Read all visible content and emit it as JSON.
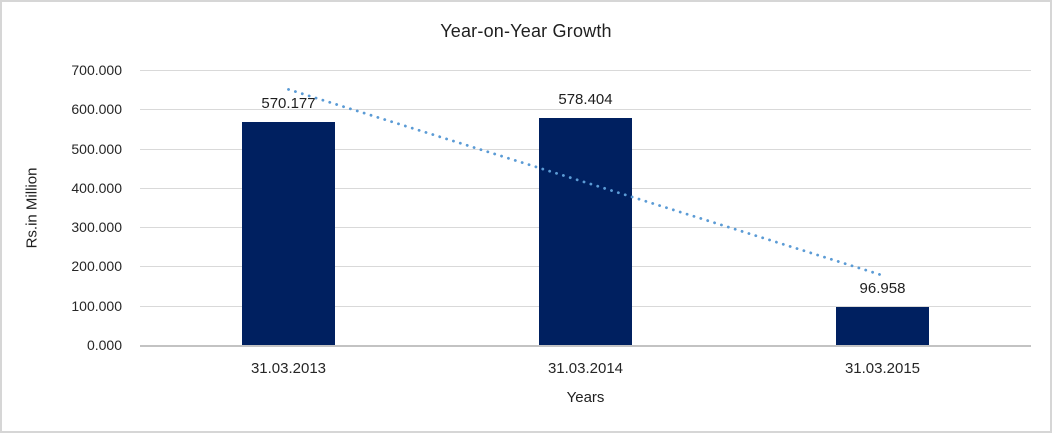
{
  "frame": {
    "background": "#ffffff",
    "border_color": "#d6d6d6"
  },
  "chart_data": {
    "type": "bar",
    "title": "Year-on-Year Growth",
    "xlabel": "Years",
    "ylabel": "Rs.in Million",
    "categories": [
      "31.03.2013",
      "31.03.2014",
      "31.03.2015"
    ],
    "values": [
      570.177,
      578.404,
      96.958
    ],
    "value_labels": [
      "570.177",
      "578.404",
      "96.958"
    ],
    "ylim": [
      0,
      700
    ],
    "yticks": [
      {
        "value": 700,
        "label": "700.000"
      },
      {
        "value": 600,
        "label": "600.000"
      },
      {
        "value": 500,
        "label": "500.000"
      },
      {
        "value": 400,
        "label": "400.000"
      },
      {
        "value": 300,
        "label": "300.000"
      },
      {
        "value": 200,
        "label": "200.000"
      },
      {
        "value": 100,
        "label": "100.000"
      },
      {
        "value": 0,
        "label": "0.000"
      }
    ],
    "grid": true,
    "legend": "none",
    "colors": {
      "bar": "#002060",
      "trendline": "#5b9bd5",
      "gridline": "#d9d9d9",
      "axis_line": "#c3c3c3",
      "text": "#262626"
    },
    "trendline": {
      "type": "linear",
      "style": "dotted",
      "endpoint_values": [
        651.8,
        178.6
      ]
    }
  }
}
